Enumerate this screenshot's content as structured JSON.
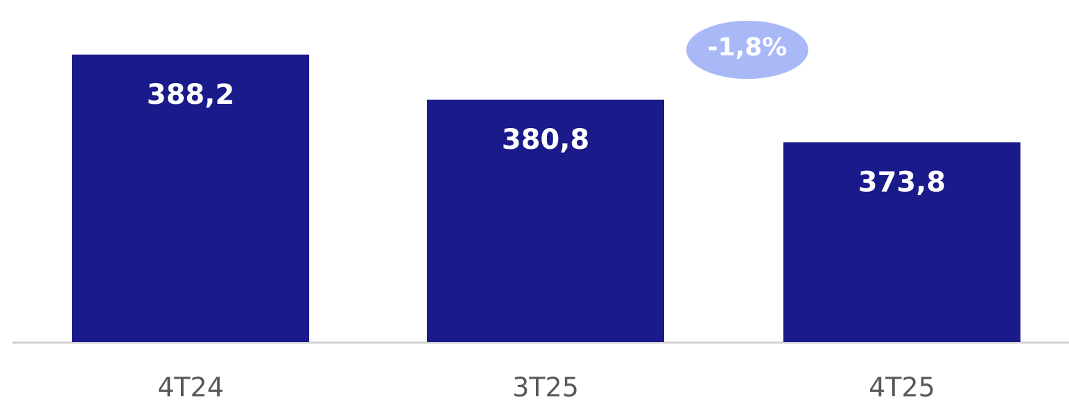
{
  "chart_data": {
    "type": "bar",
    "categories": [
      "4T24",
      "3T25",
      "4T25"
    ],
    "values": [
      388.2,
      380.8,
      373.8
    ],
    "value_labels": [
      "388,2",
      "380,8",
      "373,8"
    ],
    "color": "#1a1a8a",
    "ylim": [
      341,
      390
    ],
    "annotation": "-1,8%",
    "annotation_color": "#a9b8f7"
  }
}
